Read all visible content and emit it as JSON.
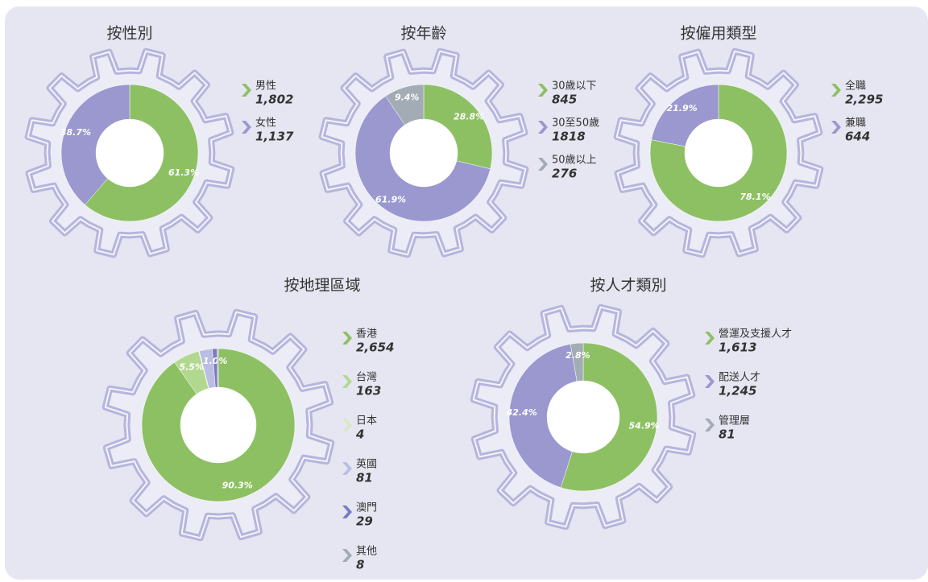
{
  "chart_data": [
    {
      "type": "pie",
      "title": "按性別",
      "categories": [
        "男性",
        "女性"
      ],
      "values": [
        1802,
        1137
      ],
      "value_labels": [
        "1,802",
        "1,137"
      ],
      "percent_labels": [
        "61.3%",
        "38.7%"
      ],
      "colors": [
        "#8dc063",
        "#9a98cf"
      ]
    },
    {
      "type": "pie",
      "title": "按年齡",
      "categories": [
        "30歲以下",
        "30至50歲",
        "50歲以上"
      ],
      "values": [
        845,
        1818,
        276
      ],
      "percent_labels": [
        "28.8%",
        "61.9%",
        "9.4%"
      ],
      "colors": [
        "#8dc063",
        "#9a98cf",
        "#a3acb5"
      ]
    },
    {
      "type": "pie",
      "title": "按僱用類型",
      "categories": [
        "全職",
        "兼職"
      ],
      "values": [
        2295,
        644
      ],
      "value_labels": [
        "2,295",
        "644"
      ],
      "percent_labels": [
        "78.1%",
        "21.9%"
      ],
      "colors": [
        "#8dc063",
        "#9a98cf"
      ]
    },
    {
      "type": "pie",
      "title": "按地理區域",
      "categories": [
        "香港",
        "台灣",
        "日本",
        "英國",
        "澳門",
        "其他"
      ],
      "values": [
        2654,
        163,
        4,
        81,
        29,
        8
      ],
      "value_labels": [
        "2,654",
        "163",
        "4",
        "81",
        "29",
        "8"
      ],
      "percent_labels": [
        "90.3%",
        "5.5%",
        null,
        null,
        "1.0%",
        null
      ],
      "colors": [
        "#8dc063",
        "#b2d88f",
        "#d6eac2",
        "#bcbde3",
        "#7c7ac2",
        "#a3acb5"
      ]
    },
    {
      "type": "pie",
      "title": "按人才類別",
      "categories": [
        "營運及支援人才",
        "配送人才",
        "管理層"
      ],
      "values": [
        1613,
        1245,
        81
      ],
      "value_labels": [
        "1,613",
        "1,245",
        "81"
      ],
      "percent_labels": [
        "54.9%",
        "42.4%",
        "2.8%"
      ],
      "colors": [
        "#8dc063",
        "#9a98cf",
        "#a3acb5"
      ]
    }
  ]
}
